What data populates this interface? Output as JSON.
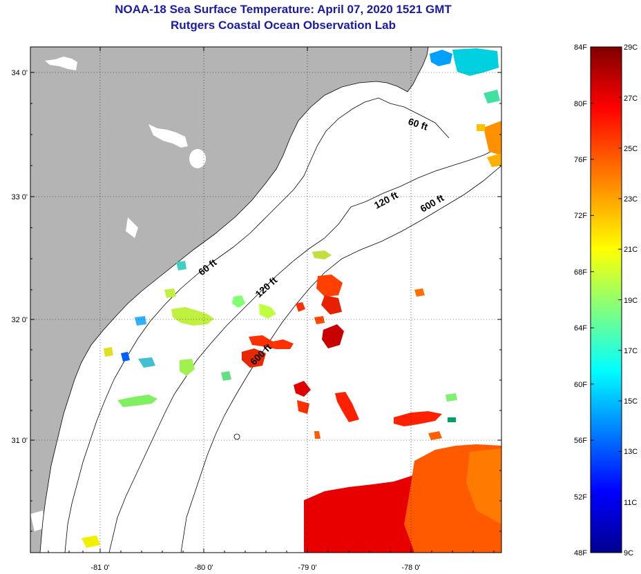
{
  "title_line1": "NOAA-18 Sea Surface Temperature:  April 07, 2020 1521 GMT",
  "title_line2": "Rutgers Coastal Ocean Observation Lab",
  "lat_labels": [
    "34 0'",
    "33 0'",
    "32 0'",
    "31 0'"
  ],
  "lon_labels": [
    "-81 0'",
    "-80 0'",
    "-79 0'",
    "-78 0'"
  ],
  "contours": {
    "c60_upper": "60 ft",
    "c120_upper": "120 ft",
    "c600_upper": "600 ft",
    "c60_lower": "60 ft",
    "c120_lower": "120 ft",
    "c600_lower": "600 ft"
  },
  "colorbar": {
    "f_labels": [
      "84F",
      "80F",
      "76F",
      "72F",
      "68F",
      "64F",
      "60F",
      "56F",
      "52F",
      "48F"
    ],
    "c_labels": [
      "29C",
      "27C",
      "25C",
      "23C",
      "21C",
      "19C",
      "17C",
      "15C",
      "13C",
      "11C",
      "9C"
    ],
    "colors": [
      "#7f0000",
      "#ff0000",
      "#ff8000",
      "#ffff00",
      "#80ff80",
      "#00ffff",
      "#0080ff",
      "#0000ff",
      "#00008f"
    ]
  },
  "colors": {
    "land": "#b4b4b4",
    "title": "#1a1aa6"
  }
}
